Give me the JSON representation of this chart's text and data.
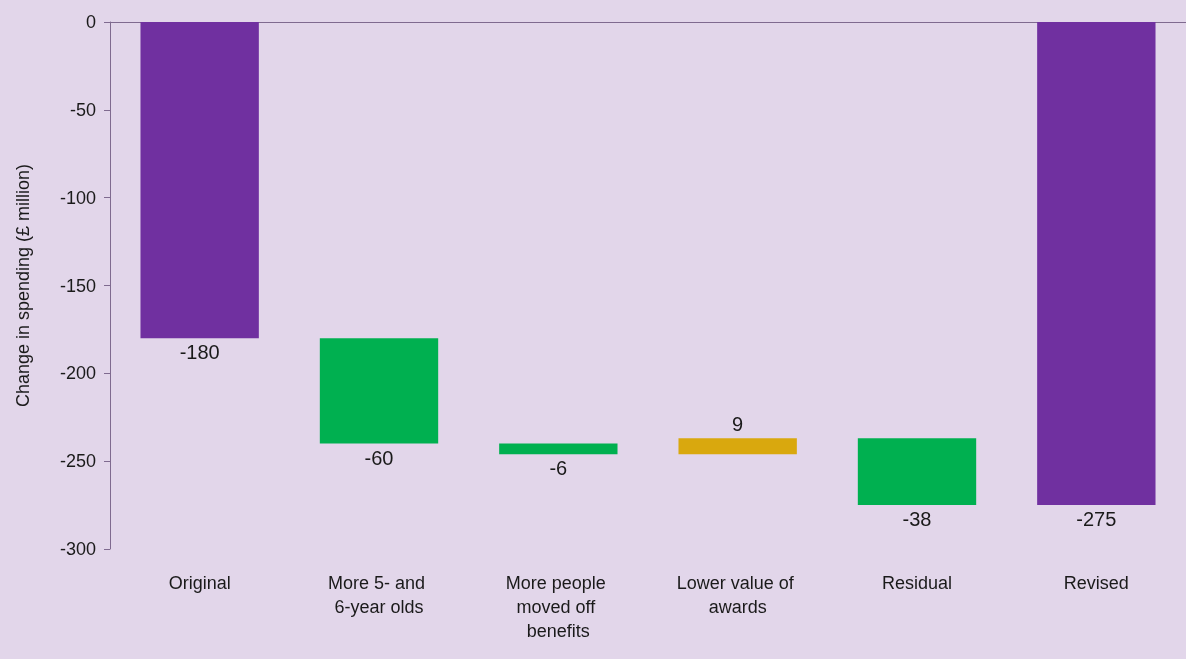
{
  "chart_data": {
    "type": "bar",
    "ylabel": "Change in spending (£ million)",
    "categories": [
      "Original",
      "More 5- and 6-year olds",
      "More people moved off benefits",
      "Lower value of awards",
      "Residual",
      "Revised"
    ],
    "values": [
      -180,
      -60,
      -6,
      9,
      -38,
      -275
    ],
    "base": [
      0,
      -180,
      -240,
      -246,
      -237,
      0
    ],
    "colors": [
      "#7030a0",
      "#00b050",
      "#00b050",
      "#d9a80e",
      "#00b050",
      "#7030a0"
    ],
    "ylim": [
      -300,
      0
    ],
    "yticks": [
      -300,
      -250,
      -200,
      -150,
      -100,
      -50,
      0
    ],
    "grid": false,
    "data_labels": true
  }
}
